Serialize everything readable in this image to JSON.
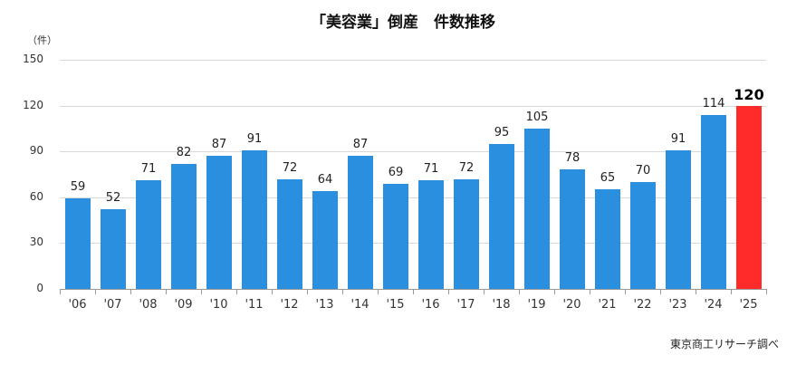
{
  "title": "「美容業」倒産　件数推移",
  "unit": "（件）",
  "source": "東京商工リサーチ調べ",
  "colors": {
    "bar": "#2b8fe0",
    "highlight": "#ff2a2a"
  },
  "chart_data": {
    "type": "bar",
    "title": "「美容業」倒産　件数推移",
    "xlabel": "",
    "ylabel": "（件）",
    "ylim": [
      0,
      150
    ],
    "yticks": [
      0,
      30,
      60,
      90,
      120,
      150
    ],
    "grid": true,
    "legend": null,
    "categories": [
      "'06",
      "'07",
      "'08",
      "'09",
      "'10",
      "'11",
      "'12",
      "'13",
      "'14",
      "'15",
      "'16",
      "'17",
      "'18",
      "'19",
      "'20",
      "'21",
      "'22",
      "'23",
      "'24",
      "'25"
    ],
    "values": [
      59,
      52,
      71,
      82,
      87,
      91,
      72,
      64,
      87,
      69,
      71,
      72,
      95,
      105,
      78,
      65,
      70,
      91,
      114,
      120
    ],
    "highlight_index": 19,
    "annotation": "東京商工リサーチ調べ"
  }
}
